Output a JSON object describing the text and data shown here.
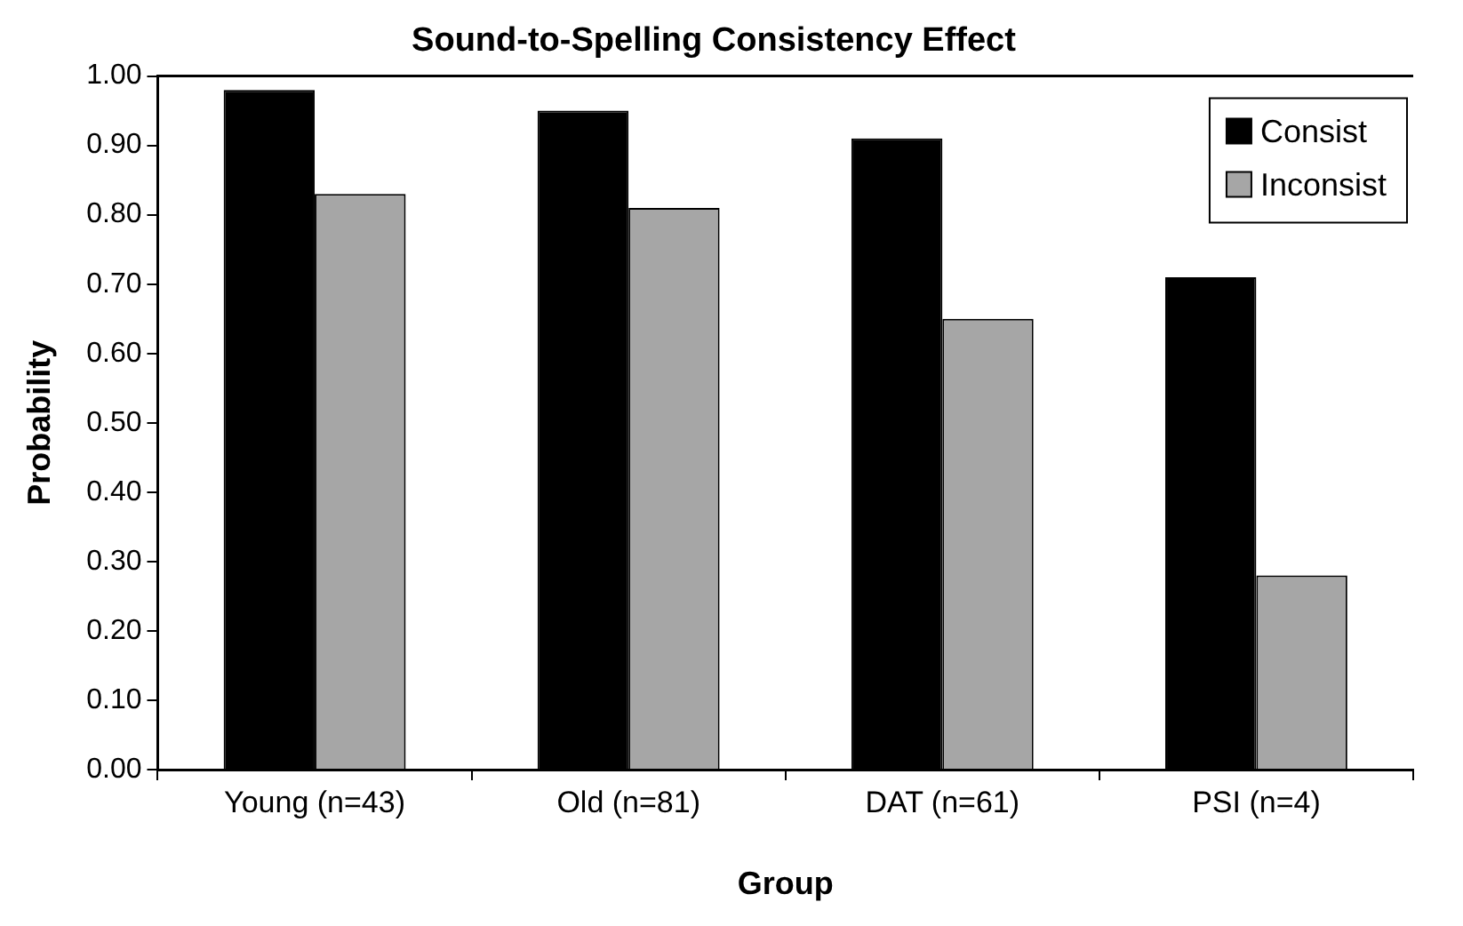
{
  "chart_data": {
    "type": "bar",
    "title": "Sound-to-Spelling Consistency Effect",
    "xlabel": "Group",
    "ylabel": "Probability",
    "categories": [
      "Young (n=43)",
      "Old (n=81)",
      "DAT (n=61)",
      "PSI (n=4)"
    ],
    "series": [
      {
        "name": "Consist",
        "color": "#000000",
        "values": [
          0.98,
          0.95,
          0.91,
          0.71
        ]
      },
      {
        "name": "Inconsist",
        "color": "#a6a6a6",
        "values": [
          0.83,
          0.81,
          0.65,
          0.28
        ]
      }
    ],
    "ylim": [
      0,
      1
    ],
    "yticks": [
      {
        "value": 0,
        "label": "0.00"
      },
      {
        "value": 0.1,
        "label": "0.10"
      },
      {
        "value": 0.2,
        "label": "0.20"
      },
      {
        "value": 0.3,
        "label": "0.30"
      },
      {
        "value": 0.4,
        "label": "0.40"
      },
      {
        "value": 0.5,
        "label": "0.50"
      },
      {
        "value": 0.6,
        "label": "0.60"
      },
      {
        "value": 0.7,
        "label": "0.70"
      },
      {
        "value": 0.8,
        "label": "0.80"
      },
      {
        "value": 0.9,
        "label": "0.90"
      },
      {
        "value": 1,
        "label": "1.00"
      }
    ],
    "grid": false,
    "legend": "top right"
  }
}
